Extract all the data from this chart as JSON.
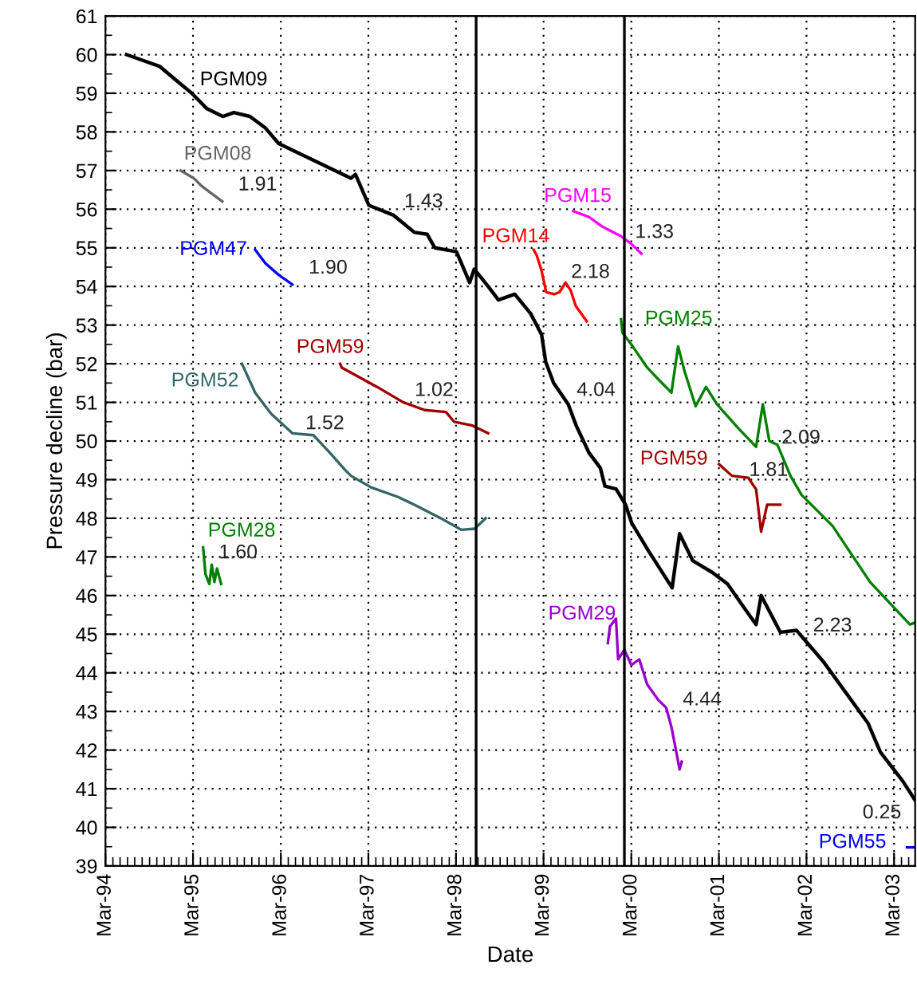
{
  "chart_data": {
    "type": "line",
    "xlabel": "Date",
    "ylabel": "Pressure decline (bar)",
    "xlim": [
      "1994-03-01",
      "2003-05-28"
    ],
    "ylim": [
      39,
      61
    ],
    "xticks": [
      {
        "value": "1994-03-01",
        "label": "Mar-94"
      },
      {
        "value": "1995-03-01",
        "label": "Mar-95"
      },
      {
        "value": "1996-03-01",
        "label": "Mar-96"
      },
      {
        "value": "1997-03-01",
        "label": "Mar-97"
      },
      {
        "value": "1998-03-01",
        "label": "Mar-98"
      },
      {
        "value": "1999-03-01",
        "label": "Mar-99"
      },
      {
        "value": "2000-03-01",
        "label": "Mar-00"
      },
      {
        "value": "2001-03-01",
        "label": "Mar-01"
      },
      {
        "value": "2002-03-01",
        "label": "Mar-02"
      },
      {
        "value": "2003-03-01",
        "label": "Mar-03"
      }
    ],
    "yticks": [
      39,
      40,
      41,
      42,
      43,
      44,
      45,
      46,
      47,
      48,
      49,
      50,
      51,
      52,
      53,
      54,
      55,
      56,
      57,
      58,
      59,
      60,
      61
    ],
    "grid": true,
    "series": [
      {
        "name": "PGM09",
        "color": "#000000",
        "x": [
          "1994-05-28",
          "1994-10-12",
          "1994-12-18",
          "1995-02-24",
          "1995-04-28",
          "1995-07-03",
          "1995-08-18",
          "1995-10-24",
          "1995-12-28",
          "1996-02-21",
          "1996-12-18",
          "1997-01-06",
          "1997-03-03",
          "1997-06-12",
          "1997-09-09",
          "1997-11-01",
          "1997-12-03",
          "1998-03-03",
          "1998-04-27",
          "1998-05-16",
          "1998-07-13",
          "1998-08-25",
          "1998-11-01",
          "1999-01-06",
          "1999-02-21",
          "1999-03-10",
          "1999-04-12",
          "1999-06-12",
          "1999-07-15",
          "1999-09-06",
          "1999-10-24",
          "1999-11-12",
          "1999-12-28",
          "2000-02-06",
          "2000-03-03",
          "2000-05-09",
          "2000-08-18",
          "2000-09-18",
          "2000-11-12",
          "2001-02-01",
          "2001-04-06",
          "2001-06-12",
          "2001-08-03",
          "2001-08-24",
          "2001-11-12",
          "2002-01-18",
          "2002-05-09",
          "2002-11-12",
          "2003-01-03",
          "2003-04-06",
          "2003-05-28"
        ],
        "values": [
          60.0,
          59.7,
          59.35,
          59.0,
          58.6,
          58.4,
          58.5,
          58.4,
          58.1,
          57.7,
          56.8,
          56.9,
          56.1,
          55.85,
          55.4,
          55.35,
          55.0,
          54.9,
          54.1,
          54.45,
          54.0,
          53.65,
          53.8,
          53.3,
          52.75,
          52.05,
          51.5,
          50.95,
          50.4,
          49.7,
          49.3,
          48.83,
          48.76,
          48.35,
          47.87,
          47.18,
          46.2,
          47.6,
          46.9,
          46.6,
          46.3,
          45.7,
          45.25,
          46.0,
          45.05,
          45.1,
          44.3,
          42.7,
          41.95,
          41.2,
          40.7
        ]
      },
      {
        "name": "PGM08",
        "color": "#666666",
        "x": [
          "1995-01-09",
          "1995-03-04",
          "1995-04-06",
          "1995-07-01"
        ],
        "values": [
          57.0,
          56.8,
          56.6,
          56.2
        ]
      },
      {
        "name": "PGM47",
        "color": "#0000ff",
        "x": [
          "1995-11-15",
          "1995-12-28",
          "1996-02-21",
          "1996-04-18"
        ],
        "values": [
          54.95,
          54.6,
          54.3,
          54.05
        ]
      },
      {
        "name": "PGM59",
        "color": "#a00000",
        "x": [
          "1996-11-03",
          "1996-11-10",
          "1997-04-06",
          "1997-07-25",
          "1997-10-22",
          "1998-01-18",
          "1998-02-21",
          "1998-05-09",
          "1998-07-13"
        ],
        "values": [
          52.0,
          51.9,
          51.4,
          51.0,
          50.8,
          50.75,
          50.5,
          50.4,
          50.2
        ]
      },
      {
        "name": "PGM52",
        "color": "#336666",
        "x": [
          "1995-09-21",
          "1995-11-15",
          "1996-01-21",
          "1996-04-18",
          "1996-07-15",
          "1996-09-21",
          "1996-11-24",
          "1996-12-18",
          "1997-03-12",
          "1997-07-03",
          "1997-09-09",
          "1997-12-28",
          "1998-03-24",
          "1998-05-18",
          "1998-07-03"
        ],
        "values": [
          52.0,
          51.25,
          50.7,
          50.2,
          50.15,
          49.7,
          49.25,
          49.1,
          48.8,
          48.55,
          48.35,
          48.0,
          47.7,
          47.73,
          48.0
        ]
      },
      {
        "name": "PGM28",
        "color": "#008000",
        "x": [
          "1995-04-12",
          "1995-04-22",
          "1995-05-08",
          "1995-05-18",
          "1995-05-29",
          "1995-06-09",
          "1995-06-26"
        ],
        "values": [
          47.25,
          46.55,
          46.3,
          46.8,
          46.35,
          46.7,
          46.3
        ]
      },
      {
        "name": "PGM14",
        "color": "#ff0000",
        "x": [
          "1999-01-19",
          "1999-02-01",
          "1999-02-21",
          "1999-03-12",
          "1999-04-15",
          "1999-05-06",
          "1999-06-01",
          "1999-06-22",
          "1999-07-13",
          "1999-08-28"
        ],
        "values": [
          54.95,
          54.8,
          54.4,
          53.85,
          53.8,
          53.85,
          54.1,
          53.9,
          53.5,
          53.1
        ]
      },
      {
        "name": "PGM15",
        "color": "#ff00ff",
        "x": [
          "1999-07-03",
          "1999-09-06",
          "1999-11-01",
          "2000-01-18",
          "2000-03-01",
          "2000-04-12"
        ],
        "values": [
          55.95,
          55.8,
          55.55,
          55.3,
          55.1,
          54.85
        ]
      },
      {
        "name": "PGM25",
        "color": "#008000",
        "x": [
          "2000-01-18",
          "2000-01-24",
          "2000-03-01",
          "2000-05-06",
          "2000-06-21",
          "2000-08-15",
          "2000-09-12",
          "2000-10-09",
          "2000-11-24",
          "2001-01-06",
          "2001-02-21",
          "2001-05-18",
          "2001-08-03",
          "2001-08-31",
          "2001-09-27",
          "2001-10-31",
          "2001-12-24",
          "2002-02-09",
          "2002-06-18",
          "2002-11-21",
          "2003-05-06",
          "2003-05-28"
        ],
        "values": [
          53.15,
          52.8,
          52.5,
          51.9,
          51.6,
          51.25,
          52.45,
          51.8,
          50.9,
          51.4,
          50.95,
          50.35,
          49.85,
          50.95,
          50.0,
          49.9,
          49.1,
          48.6,
          47.8,
          46.35,
          45.25,
          45.3
        ]
      },
      {
        "name": "PGM59",
        "color": "#a00000",
        "x": [
          "2001-03-01",
          "2001-04-24",
          "2001-07-01",
          "2001-08-03",
          "2001-08-24",
          "2001-09-18",
          "2001-11-12"
        ],
        "values": [
          49.4,
          49.1,
          49.05,
          48.75,
          47.65,
          48.35,
          48.35
        ]
      },
      {
        "name": "PGM29",
        "color": "#9900cc",
        "x": [
          "1999-11-24",
          "1999-12-03",
          "1999-12-28",
          "2000-01-06",
          "2000-02-01",
          "2000-03-01",
          "2000-04-03",
          "2000-05-06",
          "2000-06-21",
          "2000-07-24",
          "2000-08-15",
          "2000-09-06",
          "2000-09-18",
          "2000-09-27"
        ],
        "values": [
          44.77,
          45.2,
          45.4,
          44.35,
          44.6,
          44.2,
          44.35,
          43.7,
          43.3,
          43.1,
          42.6,
          41.9,
          41.5,
          41.7
        ]
      },
      {
        "name": "PGM55",
        "color": "#0000ff",
        "x": [
          "2003-04-24",
          "2003-05-28"
        ],
        "values": [
          39.48,
          39.48
        ]
      }
    ],
    "ref_lines": [
      {
        "axis": "x",
        "value": "1998-05-24",
        "color": "#000000"
      },
      {
        "axis": "x",
        "value": "2000-02-01",
        "color": "#000000"
      }
    ],
    "annotations": [
      "1.43",
      "1.91",
      "1.90",
      "1.02",
      "1.52",
      "1.60",
      "2.18",
      "1.33",
      "4.04",
      "2.09",
      "1.81",
      "4.44",
      "2.23",
      "0.25"
    ]
  }
}
